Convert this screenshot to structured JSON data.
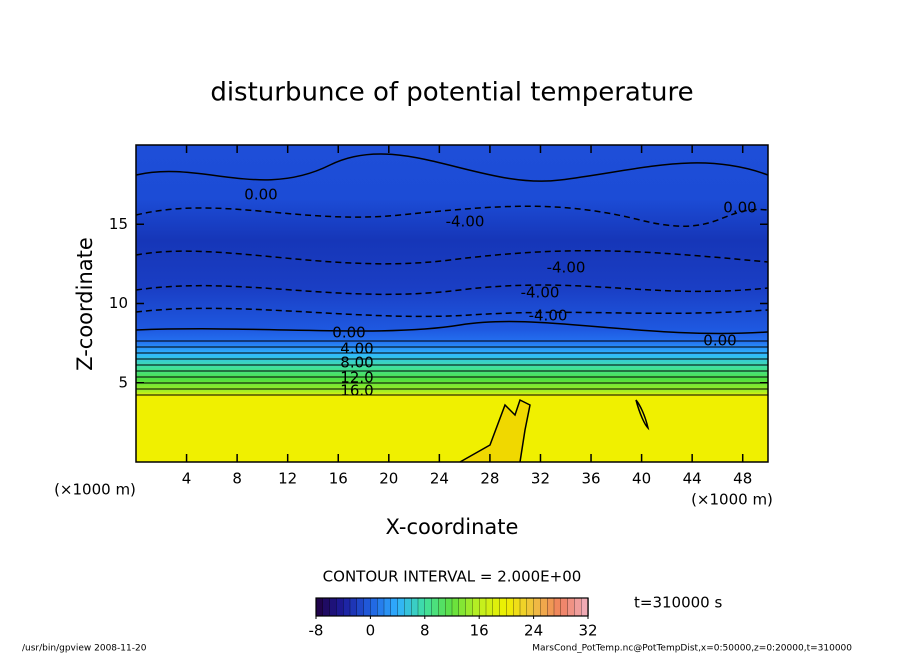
{
  "chart_data": {
    "type": "contour",
    "title": "disturbunce of potential temperature",
    "xlabel": "X-coordinate",
    "ylabel": "Z-coordinate",
    "x_unit": "(×1000 m)",
    "y_unit": "(×1000 m)",
    "xlim": [
      0,
      50
    ],
    "xticks": [
      4,
      8,
      12,
      16,
      20,
      24,
      28,
      32,
      36,
      40,
      44,
      48
    ],
    "ylim": [
      0,
      20
    ],
    "yticks": [
      5,
      10,
      15
    ],
    "contour_interval": "CONTOUR INTERVAL = 2.000E+00",
    "time_label": "t=310000 s",
    "contour_labels": [
      {
        "value": 0,
        "label": "0.00"
      },
      {
        "value": -4,
        "label": "-4.00"
      },
      {
        "value": -4,
        "label": "-4.00"
      },
      {
        "value": -4,
        "label": "-4.00"
      },
      {
        "value": -4,
        "label": "-4.00"
      },
      {
        "value": 0,
        "label": "0.00"
      },
      {
        "value": 0,
        "label": "0.00"
      },
      {
        "value": 0,
        "label": "0.00"
      },
      {
        "value": 4,
        "label": "4.00"
      },
      {
        "value": 8,
        "label": "8.00"
      },
      {
        "value": 12,
        "label": "12.0"
      },
      {
        "value": 16,
        "label": "16.0"
      }
    ],
    "colorbar": {
      "lim": [
        -8,
        32
      ],
      "ticks": [
        -8,
        0,
        8,
        16,
        24,
        32
      ],
      "colors": [
        "#200040",
        "#1c1c9c",
        "#2060e0",
        "#30b0ff",
        "#40e0a0",
        "#60e040",
        "#c0f020",
        "#f0f000",
        "#f0c040",
        "#f08060",
        "#f0b0c0"
      ]
    },
    "footer_left": "/usr/bin/gpview   2008-11-20",
    "footer_right": "MarsCond_PotTemp.nc@PotTempDist,x=0:50000,z=0:20000,t=310000"
  }
}
